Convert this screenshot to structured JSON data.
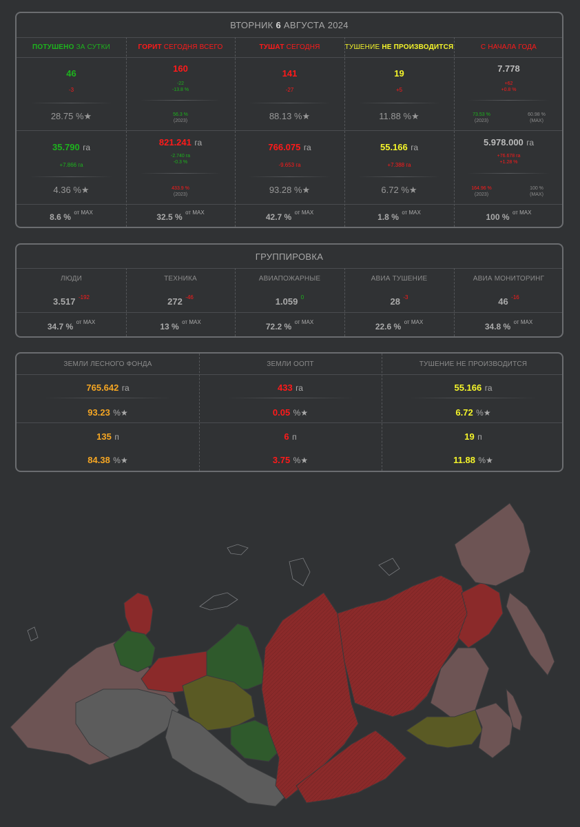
{
  "summary": {
    "date_prefix": "ВТОРНИК",
    "date_day": "6",
    "date_rest": "АВГУСТА 2024",
    "headers": [
      {
        "a": "ПОТУШЕНО",
        "b": " ЗА СУТКИ"
      },
      {
        "a": "ГОРИТ",
        "b": " СЕГОДНЯ ВСЕГО"
      },
      {
        "a": "ТУШАТ",
        "b": " СЕГОДНЯ"
      },
      {
        "a": "ТУШЕНИЕ ",
        "b": "НЕ ПРОИЗВОДИТСЯ"
      },
      {
        "a": "",
        "b": "С НАЧАЛА ГОДА"
      }
    ],
    "counts": {
      "extinguished": {
        "value": "46",
        "delta": "-3",
        "pct": "28.75 %★"
      },
      "burning": {
        "value": "160",
        "delta1": "-22",
        "delta2": "-13.8 %",
        "pct2023": "56.3 %",
        "year": "(2023)"
      },
      "fighting": {
        "value": "141",
        "delta": "-27",
        "pct": "88.13 %★"
      },
      "not_fighting": {
        "value": "19",
        "delta": "+5",
        "pct": "11.88 %★"
      },
      "ytd": {
        "value": "7.778",
        "delta1": "+62",
        "delta2": "+0.8 %",
        "pct2023": "73.53 %",
        "year2023": "(2023)",
        "pct_max": "60.98 %",
        "max": "(MAX)"
      }
    },
    "areas": {
      "extinguished": {
        "value": "35.790",
        "unit": "га",
        "delta": "+7.866 га",
        "pct": "4.36 %★"
      },
      "burning": {
        "value": "821.241",
        "unit": "га",
        "delta1": "-2.740 га",
        "delta2": "-0.3 %",
        "pct2023": "433.9 %",
        "year": "(2023)"
      },
      "fighting": {
        "value": "766.075",
        "unit": "га",
        "delta": "-9.653 га",
        "pct": "93.28 %★"
      },
      "not_fighting": {
        "value": "55.166",
        "unit": "га",
        "delta": "+7.388 га",
        "pct": "6.72 %★"
      },
      "ytd": {
        "value": "5.978.000",
        "unit": "га",
        "delta1": "+76.678 га",
        "delta2": "+1.28 %",
        "pct2023": "164.96 %",
        "year2023": "(2023)",
        "pct_max": "100 %",
        "max": "(MAX)"
      }
    },
    "max_row": [
      {
        "value": "8.6 %",
        "suffix": "от MAX"
      },
      {
        "value": "32.5 %",
        "suffix": "от MAX"
      },
      {
        "value": "42.7 %",
        "suffix": "от MAX"
      },
      {
        "value": "1.8 %",
        "suffix": "от MAX"
      },
      {
        "value": "100 %",
        "suffix": "от MAX"
      }
    ]
  },
  "forces": {
    "title": "ГРУППИРОВКА",
    "columns": [
      {
        "label": "ЛЮДИ",
        "value": "3.517",
        "delta": "-192",
        "pct": "34.7 %",
        "suffix": "от MAX"
      },
      {
        "label": "ТЕХНИКА",
        "value": "272",
        "delta": "-46",
        "pct": "13 %",
        "suffix": "от MAX"
      },
      {
        "label": "АВИАПОЖАРНЫЕ",
        "value": "1.059",
        "delta": "0",
        "pct": "72.2 %",
        "suffix": "от MAX"
      },
      {
        "label": "АВИА ТУШЕНИЕ",
        "value": "28",
        "delta": "-3",
        "pct": "22.6 %",
        "suffix": "от MAX"
      },
      {
        "label": "АВИА МОНИТОРИНГ",
        "value": "46",
        "delta": "-16",
        "pct": "34.8 %",
        "suffix": "от MAX"
      }
    ]
  },
  "lands": {
    "columns": [
      {
        "label": "ЗЕМЛИ ЛЕСНОГО ФОНДА",
        "area": "765.642",
        "area_unit": "га",
        "area_pct": "93.23",
        "count": "135",
        "count_unit": "п",
        "count_pct": "84.38",
        "pct_suffix": "%★"
      },
      {
        "label": "ЗЕМЛИ ООПТ",
        "area": "433",
        "area_unit": "га",
        "area_pct": "0.05",
        "count": "6",
        "count_unit": "п",
        "count_pct": "3.75",
        "pct_suffix": "%★"
      },
      {
        "label": "ТУШЕНИЕ НЕ ПРОИЗВОДИТСЯ",
        "area": "55.166",
        "area_unit": "га",
        "area_pct": "6.72",
        "count": "19",
        "count_unit": "п",
        "count_pct": "11.88",
        "pct_suffix": "%★"
      }
    ]
  },
  "colors": {
    "green": "#1db31d",
    "red": "#ff1a1a",
    "yellow": "#f5f52a",
    "orange": "#f5a623",
    "map_red": "#8b2a2a",
    "map_green": "#2f5a2c",
    "map_olive": "#5a5a24",
    "map_pink": "#6d5454",
    "map_grey": "#5c5c5c"
  }
}
